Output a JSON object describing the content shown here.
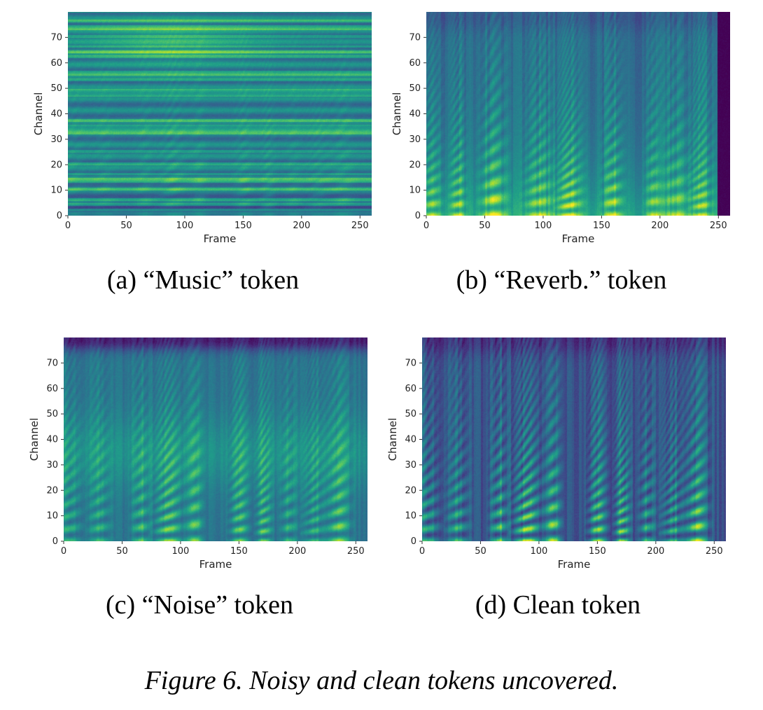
{
  "figure_caption": "Figure 6. Noisy and clean tokens uncovered.",
  "chart_data": [
    {
      "type": "heatmap",
      "caption": "(a) “Music” token",
      "variant": "music",
      "xlabel": "Frame",
      "ylabel": "Channel",
      "xlim": [
        0,
        260
      ],
      "ylim": [
        0,
        80
      ],
      "xticks": [
        0,
        50,
        100,
        150,
        200,
        250
      ],
      "yticks": [
        0,
        10,
        20,
        30,
        40,
        50,
        60,
        70
      ],
      "colormap": "viridis"
    },
    {
      "type": "heatmap",
      "caption": "(b) “Reverb.” token",
      "variant": "reverb",
      "xlabel": "Frame",
      "ylabel": "Channel",
      "xlim": [
        0,
        260
      ],
      "ylim": [
        0,
        80
      ],
      "xticks": [
        0,
        50,
        100,
        150,
        200,
        250
      ],
      "yticks": [
        0,
        10,
        20,
        30,
        40,
        50,
        60,
        70
      ],
      "colormap": "viridis"
    },
    {
      "type": "heatmap",
      "caption": "(c) “Noise” token",
      "variant": "noise",
      "xlabel": "Frame",
      "ylabel": "Channel",
      "xlim": [
        0,
        260
      ],
      "ylim": [
        0,
        80
      ],
      "xticks": [
        0,
        50,
        100,
        150,
        200,
        250
      ],
      "yticks": [
        0,
        10,
        20,
        30,
        40,
        50,
        60,
        70
      ],
      "colormap": "viridis"
    },
    {
      "type": "heatmap",
      "caption": "(d) Clean token",
      "variant": "clean",
      "xlabel": "Frame",
      "ylabel": "Channel",
      "xlim": [
        0,
        260
      ],
      "ylim": [
        0,
        80
      ],
      "xticks": [
        0,
        50,
        100,
        150,
        200,
        250
      ],
      "yticks": [
        0,
        10,
        20,
        30,
        40,
        50,
        60,
        70
      ],
      "colormap": "viridis"
    }
  ]
}
